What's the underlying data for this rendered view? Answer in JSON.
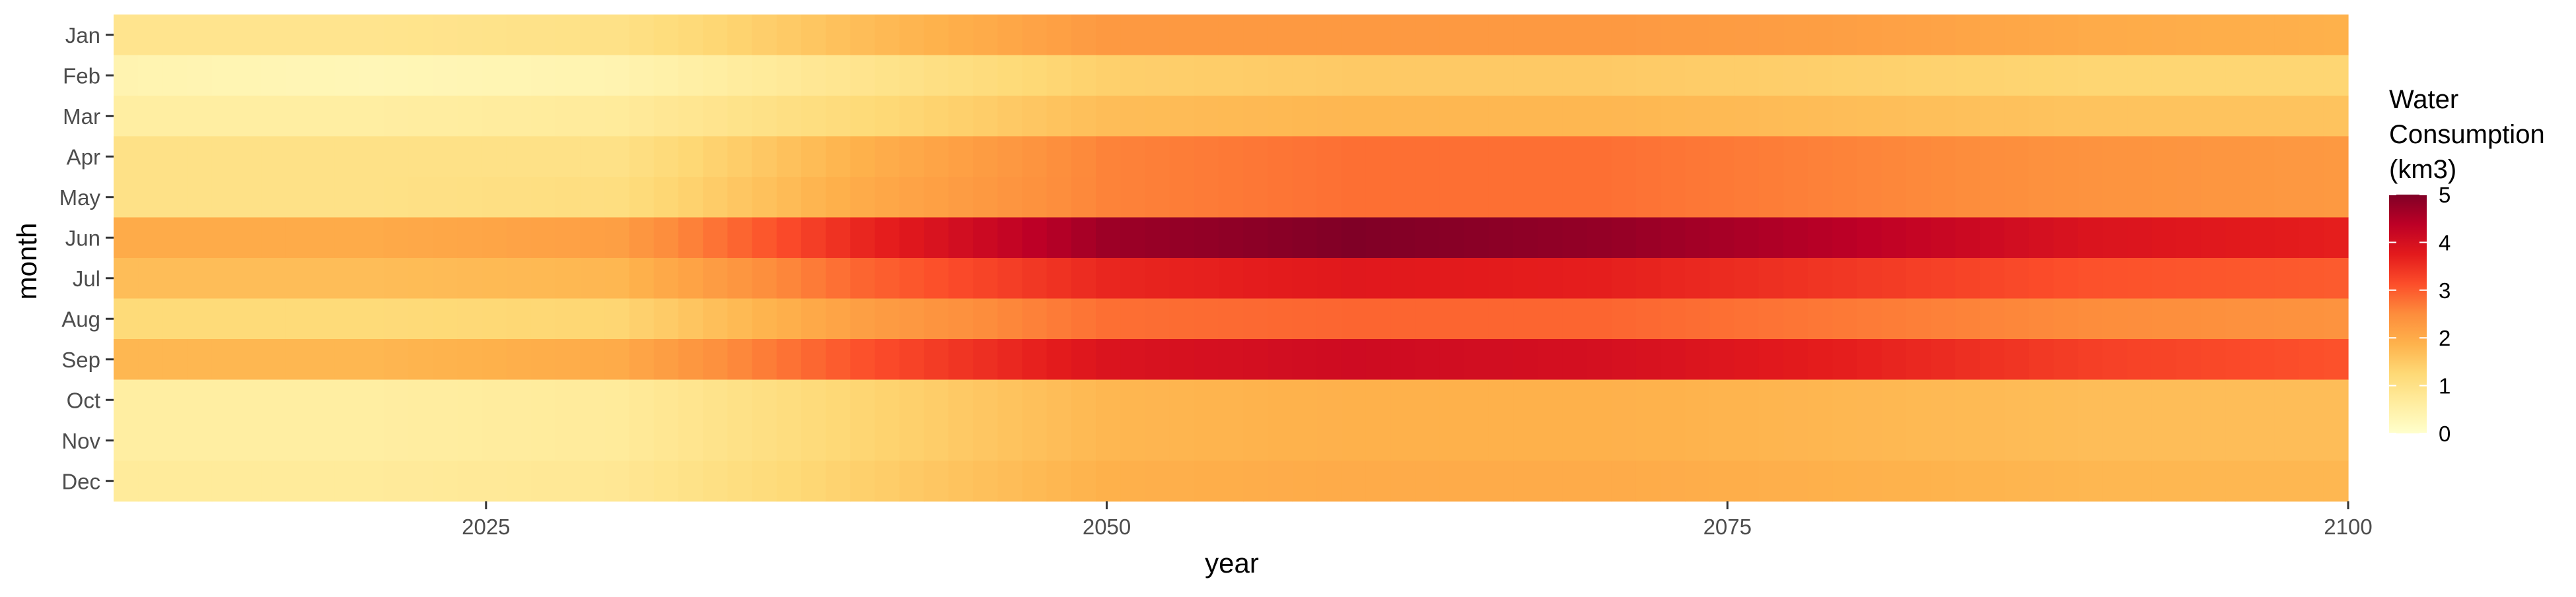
{
  "chart_data": {
    "type": "heatmap",
    "title": "",
    "xlabel": "year",
    "ylabel": "month",
    "x_range": [
      2010,
      2100
    ],
    "x_ticks": [
      2025,
      2050,
      2075,
      2100
    ],
    "x_tick_labels": [
      "2025",
      "2050",
      "2075",
      "2100"
    ],
    "months": [
      "Jan",
      "Feb",
      "Mar",
      "Apr",
      "May",
      "Jun",
      "Jul",
      "Aug",
      "Sep",
      "Oct",
      "Nov",
      "Dec"
    ],
    "years_start": 2010,
    "years_end": 2100,
    "grid": false,
    "legend": {
      "title_lines": [
        "Water",
        "Consumption",
        "(km3)"
      ],
      "placement": "right",
      "min": 0,
      "max": 5,
      "ticks": [
        0,
        1,
        2,
        3,
        4,
        5
      ],
      "colors": [
        "#ffffcc",
        "#ffeda0",
        "#fed976",
        "#feb24c",
        "#fd8d3c",
        "#fc4e2a",
        "#e31a1c",
        "#bd0026",
        "#800026"
      ]
    },
    "series_profiles": {
      "description_keys": [
        "years",
        "values"
      ],
      "years": [
        2010,
        2020,
        2030,
        2040,
        2050,
        2060,
        2070,
        2080,
        2090,
        2100
      ],
      "Jan": [
        0.9,
        0.9,
        1.0,
        1.7,
        2.3,
        2.3,
        2.3,
        2.2,
        2.0,
        1.9
      ],
      "Feb": [
        0.4,
        0.3,
        0.4,
        0.9,
        1.4,
        1.5,
        1.5,
        1.4,
        1.3,
        1.3
      ],
      "Mar": [
        0.6,
        0.6,
        0.7,
        1.2,
        1.7,
        1.8,
        1.8,
        1.7,
        1.6,
        1.6
      ],
      "Apr": [
        1.0,
        1.0,
        1.0,
        1.9,
        2.6,
        2.8,
        2.8,
        2.6,
        2.4,
        2.3
      ],
      "May": [
        1.0,
        1.0,
        1.1,
        2.0,
        2.6,
        2.8,
        2.8,
        2.6,
        2.4,
        2.3
      ],
      "Jun": [
        2.0,
        2.0,
        2.2,
        3.6,
        4.7,
        5.0,
        4.8,
        4.4,
        3.9,
        3.7
      ],
      "Jul": [
        1.7,
        1.7,
        1.8,
        2.9,
        3.6,
        3.8,
        3.7,
        3.4,
        3.1,
        3.0
      ],
      "Aug": [
        1.2,
        1.2,
        1.3,
        2.2,
        2.8,
        2.9,
        2.9,
        2.7,
        2.5,
        2.4
      ],
      "Sep": [
        1.8,
        1.8,
        2.0,
        3.1,
        3.9,
        4.1,
        4.0,
        3.7,
        3.3,
        3.1
      ],
      "Oct": [
        0.6,
        0.6,
        0.7,
        1.3,
        1.8,
        1.9,
        1.9,
        1.8,
        1.7,
        1.7
      ],
      "Nov": [
        0.6,
        0.6,
        0.7,
        1.3,
        1.8,
        1.9,
        1.9,
        1.8,
        1.7,
        1.7
      ],
      "Dec": [
        0.7,
        0.7,
        0.8,
        1.4,
        1.9,
        2.0,
        2.0,
        1.9,
        1.8,
        1.8
      ]
    }
  }
}
